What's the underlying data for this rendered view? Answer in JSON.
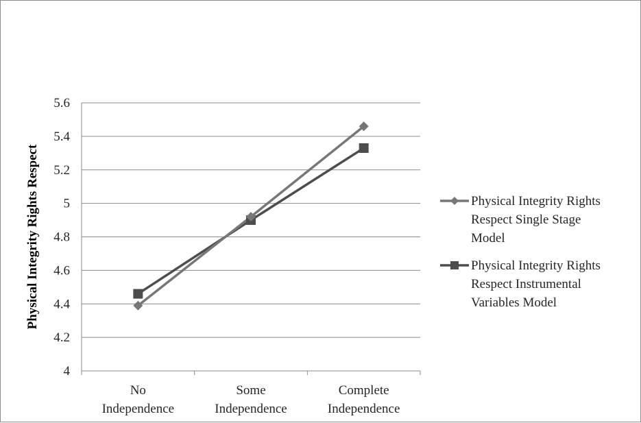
{
  "chart_data": {
    "type": "line",
    "title": "",
    "xlabel": "",
    "ylabel": "Physical Integrity Rights Respect",
    "categories": [
      [
        "No",
        "Independence"
      ],
      [
        "Some",
        "Independence"
      ],
      [
        "Complete",
        "Independence"
      ]
    ],
    "ylim": [
      4,
      5.6
    ],
    "yticks": [
      "4",
      "4.2",
      "4.4",
      "4.6",
      "4.8",
      "5",
      "5.2",
      "5.4",
      "5.6"
    ],
    "grid": true,
    "legend_position": "right",
    "series": [
      {
        "name": [
          "Physical Integrity Rights",
          "Respect Single Stage",
          "Model"
        ],
        "values": [
          4.39,
          4.92,
          5.46
        ],
        "marker": "diamond",
        "color": "#777777"
      },
      {
        "name": [
          "Physical Integrity Rights",
          "Respect Instrumental",
          "Variables Model"
        ],
        "values": [
          4.46,
          4.9,
          5.33
        ],
        "marker": "square",
        "color": "#4d4d4d"
      }
    ]
  }
}
